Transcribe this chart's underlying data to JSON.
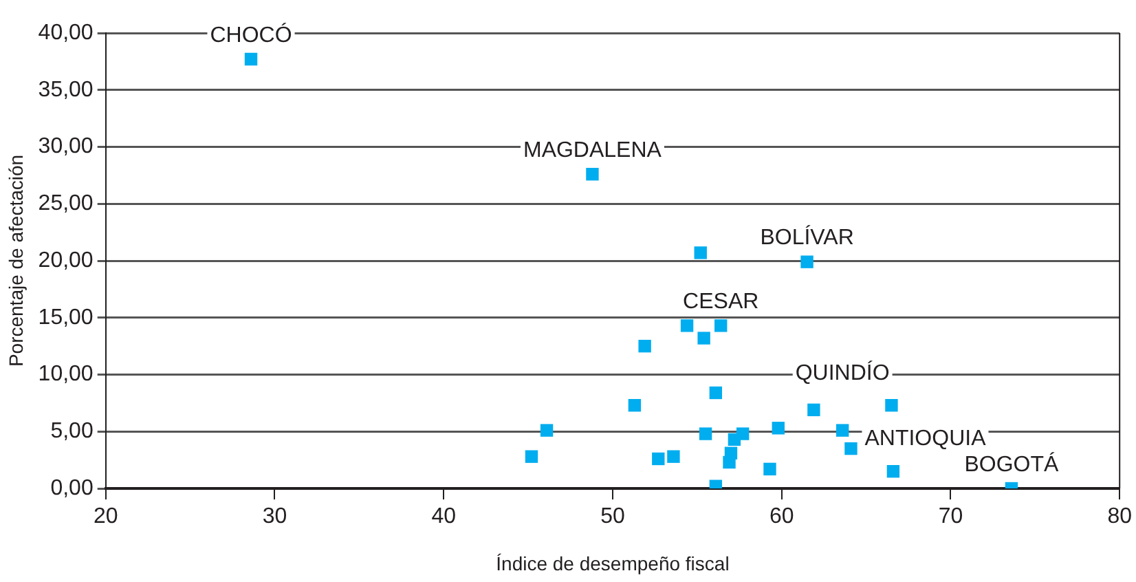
{
  "chart_data": {
    "type": "scatter",
    "xlabel": "Índice de desempeño fiscal",
    "ylabel": "Porcentaje de afectación",
    "marker": "square",
    "grid": "y",
    "legend": false,
    "xlim": [
      20,
      80
    ],
    "xticks": [
      20,
      30,
      40,
      50,
      60,
      70,
      80
    ],
    "ylim": [
      0,
      40
    ],
    "yticks": [
      {
        "value": 0,
        "label": "0,00"
      },
      {
        "value": 5,
        "label": "5,00"
      },
      {
        "value": 10,
        "label": "10,00"
      },
      {
        "value": 15,
        "label": "15,00"
      },
      {
        "value": 20,
        "label": "20,00"
      },
      {
        "value": 25,
        "label": "25,00"
      },
      {
        "value": 30,
        "label": "30,00"
      },
      {
        "value": 35,
        "label": "35,00"
      },
      {
        "value": 40,
        "label": "40,00"
      }
    ],
    "series": [
      {
        "color": "#00adef",
        "x": [
          28.6,
          48.8,
          55.2,
          61.5,
          54.4,
          56.4,
          55.4,
          51.9,
          56.1,
          51.3,
          46.1,
          45.2,
          52.7,
          53.6,
          55.5,
          57.7,
          57.2,
          57.0,
          56.9,
          56.1,
          59.3,
          59.8,
          61.9,
          66.5,
          63.6,
          64.1,
          66.6,
          73.6
        ],
        "values": [
          37.7,
          27.6,
          20.7,
          19.9,
          14.3,
          14.3,
          13.2,
          12.5,
          8.4,
          7.3,
          5.1,
          2.8,
          2.6,
          2.8,
          4.8,
          4.8,
          4.3,
          3.1,
          2.3,
          0.2,
          1.7,
          5.3,
          6.9,
          7.3,
          5.1,
          3.5,
          1.5,
          0.0
        ]
      }
    ],
    "annotations": [
      {
        "text": "CHOCÓ",
        "x": 28.6,
        "y": 37.7
      },
      {
        "text": "MAGDALENA",
        "x": 48.8,
        "y": 27.6
      },
      {
        "text": "BOLÍVAR",
        "x": 61.5,
        "y": 19.9
      },
      {
        "text": "CESAR",
        "x": 56.4,
        "y": 14.3
      },
      {
        "text": "QUINDÍO",
        "x": 63.6,
        "y": 5.1
      },
      {
        "text": "ANTIOQUIA",
        "x": 64.1,
        "y": 3.5
      },
      {
        "text": "BOGOTÁ",
        "x": 73.6,
        "y": 0.0
      }
    ]
  }
}
